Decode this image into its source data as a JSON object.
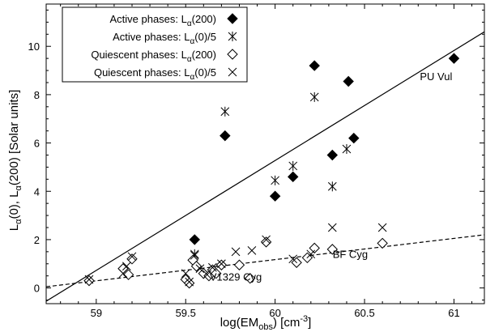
{
  "chart_data": {
    "type": "scatter",
    "xlabel": {
      "main": "log(EM",
      "sub": "obs",
      "tail": ") [cm",
      "sup": "-3",
      "end": "]"
    },
    "ylabel": {
      "pre1": "L",
      "sub1": "α",
      "mid": "(0), L",
      "sub2": "α",
      "post": "(200)  [Solar units]"
    },
    "xlim": [
      58.72,
      61.17
    ],
    "ylim": [
      -0.65,
      11.75
    ],
    "xticks": [
      59,
      59.5,
      60,
      60.5,
      61
    ],
    "yticks": [
      0,
      2,
      4,
      6,
      8,
      10
    ],
    "legend_position": "top-left",
    "legend": [
      {
        "prefix": "Active phases: L",
        "sub": "α",
        "suffix": "(200)",
        "marker": "diamond-filled"
      },
      {
        "prefix": "Active phases: L",
        "sub": "α",
        "suffix": "(0)/5",
        "marker": "asterisk"
      },
      {
        "prefix": "Quiescent phases: L",
        "sub": "α",
        "suffix": "(200)",
        "marker": "diamond-open"
      },
      {
        "prefix": "Quiescent phases: L",
        "sub": "α",
        "suffix": "(0)/5",
        "marker": "cross"
      }
    ],
    "series": [
      {
        "name": "Active phases: Lα(200)",
        "marker": "diamond-filled",
        "points": [
          [
            59.55,
            2.0
          ],
          [
            59.72,
            6.3
          ],
          [
            60.0,
            3.8
          ],
          [
            60.1,
            4.6
          ],
          [
            60.22,
            9.2
          ],
          [
            60.32,
            5.5
          ],
          [
            60.41,
            8.55
          ],
          [
            60.44,
            6.2
          ],
          [
            61.0,
            9.5
          ]
        ]
      },
      {
        "name": "Active phases: Lα(0)/5",
        "marker": "asterisk",
        "points": [
          [
            59.55,
            1.4
          ],
          [
            59.72,
            7.3
          ],
          [
            60.0,
            4.45
          ],
          [
            60.1,
            5.05
          ],
          [
            60.22,
            7.9
          ],
          [
            60.32,
            4.2
          ],
          [
            60.4,
            5.75
          ]
        ]
      },
      {
        "name": "Quiescent phases: Lα(200)",
        "marker": "diamond-open",
        "points": [
          [
            58.96,
            0.3
          ],
          [
            59.15,
            0.8
          ],
          [
            59.18,
            0.55
          ],
          [
            59.2,
            1.2
          ],
          [
            59.5,
            0.35
          ],
          [
            59.52,
            0.2
          ],
          [
            59.54,
            1.15
          ],
          [
            59.56,
            0.9
          ],
          [
            59.6,
            0.6
          ],
          [
            59.63,
            0.5
          ],
          [
            59.65,
            0.75
          ],
          [
            59.67,
            0.6
          ],
          [
            59.7,
            0.95
          ],
          [
            59.8,
            0.95
          ],
          [
            59.86,
            0.4
          ],
          [
            59.95,
            1.9
          ],
          [
            60.12,
            1.05
          ],
          [
            60.18,
            1.25
          ],
          [
            60.22,
            1.65
          ],
          [
            60.32,
            1.6
          ],
          [
            60.6,
            1.85
          ]
        ]
      },
      {
        "name": "Quiescent phases: Lα(0)/5",
        "marker": "cross",
        "points": [
          [
            58.96,
            0.35
          ],
          [
            59.15,
            0.6
          ],
          [
            59.17,
            0.9
          ],
          [
            59.2,
            1.3
          ],
          [
            59.5,
            0.6
          ],
          [
            59.52,
            0.25
          ],
          [
            59.55,
            1.35
          ],
          [
            59.58,
            0.8
          ],
          [
            59.62,
            0.55
          ],
          [
            59.65,
            0.85
          ],
          [
            59.7,
            1.0
          ],
          [
            59.78,
            1.5
          ],
          [
            59.87,
            1.55
          ],
          [
            59.95,
            2.0
          ],
          [
            60.1,
            1.2
          ],
          [
            60.2,
            1.4
          ],
          [
            60.32,
            2.5
          ],
          [
            60.6,
            2.5
          ]
        ]
      }
    ],
    "fits": [
      {
        "style": "solid",
        "points": [
          [
            58.72,
            -0.55
          ],
          [
            61.17,
            10.6
          ]
        ]
      },
      {
        "style": "dashed",
        "points": [
          [
            58.72,
            0.05
          ],
          [
            61.17,
            2.2
          ]
        ]
      }
    ],
    "annotations": [
      {
        "text": "PU Vul",
        "x": 60.9,
        "y": 8.6
      },
      {
        "text": "BF Cyg",
        "x": 60.42,
        "y": 1.25
      },
      {
        "text": "V1329 Cyg",
        "x": 59.78,
        "y": 0.3
      }
    ]
  }
}
